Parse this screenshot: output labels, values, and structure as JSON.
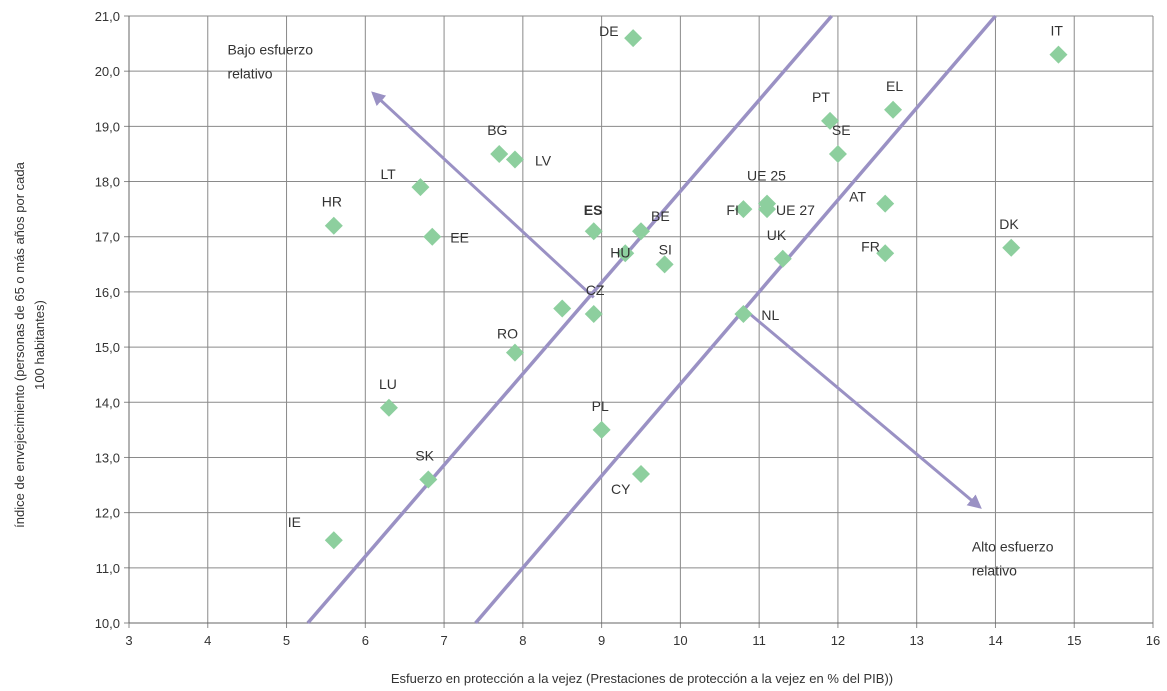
{
  "chart_data": {
    "type": "scatter",
    "xlabel": "Esfuerzo en protección a la vejez (Prestaciones de protección a la vejez en % del PIB))",
    "ylabel_lines": [
      "índice de envejecimiento (personas de 65 o más años por cada",
      "100 habitantes)"
    ],
    "xlim": [
      3,
      16
    ],
    "ylim": [
      10,
      21
    ],
    "x_ticks": [
      "3",
      "4",
      "5",
      "6",
      "7",
      "8",
      "9",
      "10",
      "11",
      "12",
      "13",
      "14",
      "15",
      "16"
    ],
    "y_ticks": [
      "10,0",
      "11,0",
      "12,0",
      "13,0",
      "14,0",
      "15,0",
      "16,0",
      "17,0",
      "18,0",
      "19,0",
      "20,0",
      "21,0"
    ],
    "grid": true,
    "marker_color": "#8dcf9e",
    "line_color": "#9a91c4",
    "points": [
      {
        "label": "DE",
        "x": 9.4,
        "y": 20.6
      },
      {
        "label": "IT",
        "x": 14.8,
        "y": 20.3
      },
      {
        "label": "EL",
        "x": 12.7,
        "y": 19.3
      },
      {
        "label": "PT",
        "x": 11.9,
        "y": 19.1
      },
      {
        "label": "SE",
        "x": 12.0,
        "y": 18.5
      },
      {
        "label": "BG",
        "x": 7.7,
        "y": 18.5
      },
      {
        "label": "LV",
        "x": 7.9,
        "y": 18.4
      },
      {
        "label": "LT",
        "x": 6.7,
        "y": 17.9
      },
      {
        "label": "HR",
        "x": 5.6,
        "y": 17.2
      },
      {
        "label": "EE",
        "x": 6.85,
        "y": 17.0
      },
      {
        "label": "ES",
        "x": 8.9,
        "y": 17.1,
        "bold": true
      },
      {
        "label": "BE",
        "x": 9.5,
        "y": 17.1
      },
      {
        "label": "HU",
        "x": 9.3,
        "y": 16.7
      },
      {
        "label": "SI",
        "x": 9.8,
        "y": 16.5
      },
      {
        "label": "FI",
        "x": 10.8,
        "y": 17.5
      },
      {
        "label": "UE 25",
        "x": 11.1,
        "y": 17.6
      },
      {
        "label": "UE 27",
        "x": 11.1,
        "y": 17.5
      },
      {
        "label": "AT",
        "x": 12.6,
        "y": 17.6
      },
      {
        "label": "UK",
        "x": 11.3,
        "y": 16.6
      },
      {
        "label": "FR",
        "x": 12.6,
        "y": 16.7
      },
      {
        "label": "DK",
        "x": 14.2,
        "y": 16.8
      },
      {
        "label": "",
        "x": 8.5,
        "y": 15.7
      },
      {
        "label": "CZ",
        "x": 8.9,
        "y": 15.6
      },
      {
        "label": "NL",
        "x": 10.8,
        "y": 15.6
      },
      {
        "label": "RO",
        "x": 7.9,
        "y": 14.9
      },
      {
        "label": "LU",
        "x": 6.3,
        "y": 13.9
      },
      {
        "label": "PL",
        "x": 9.0,
        "y": 13.5
      },
      {
        "label": "SK",
        "x": 6.8,
        "y": 12.6
      },
      {
        "label": "CY",
        "x": 9.5,
        "y": 12.7
      },
      {
        "label": "IE",
        "x": 5.6,
        "y": 11.5
      }
    ],
    "diagonal_lines": [
      {
        "from": [
          5.27,
          10.0
        ],
        "to": [
          11.92,
          21.0
        ]
      },
      {
        "from": [
          7.4,
          10.0
        ],
        "to": [
          14.0,
          21.0
        ]
      }
    ],
    "arrows": [
      {
        "from": [
          8.9,
          15.9
        ],
        "to": [
          6.1,
          19.6
        ]
      },
      {
        "from": [
          10.8,
          15.7
        ],
        "to": [
          13.8,
          12.1
        ]
      }
    ],
    "annotations": [
      {
        "lines": [
          "Bajo esfuerzo",
          "relativo"
        ],
        "x": 4.25,
        "y": 20.3
      },
      {
        "lines": [
          "Alto esfuerzo",
          "relativo"
        ],
        "x": 13.7,
        "y": 11.3
      }
    ]
  }
}
